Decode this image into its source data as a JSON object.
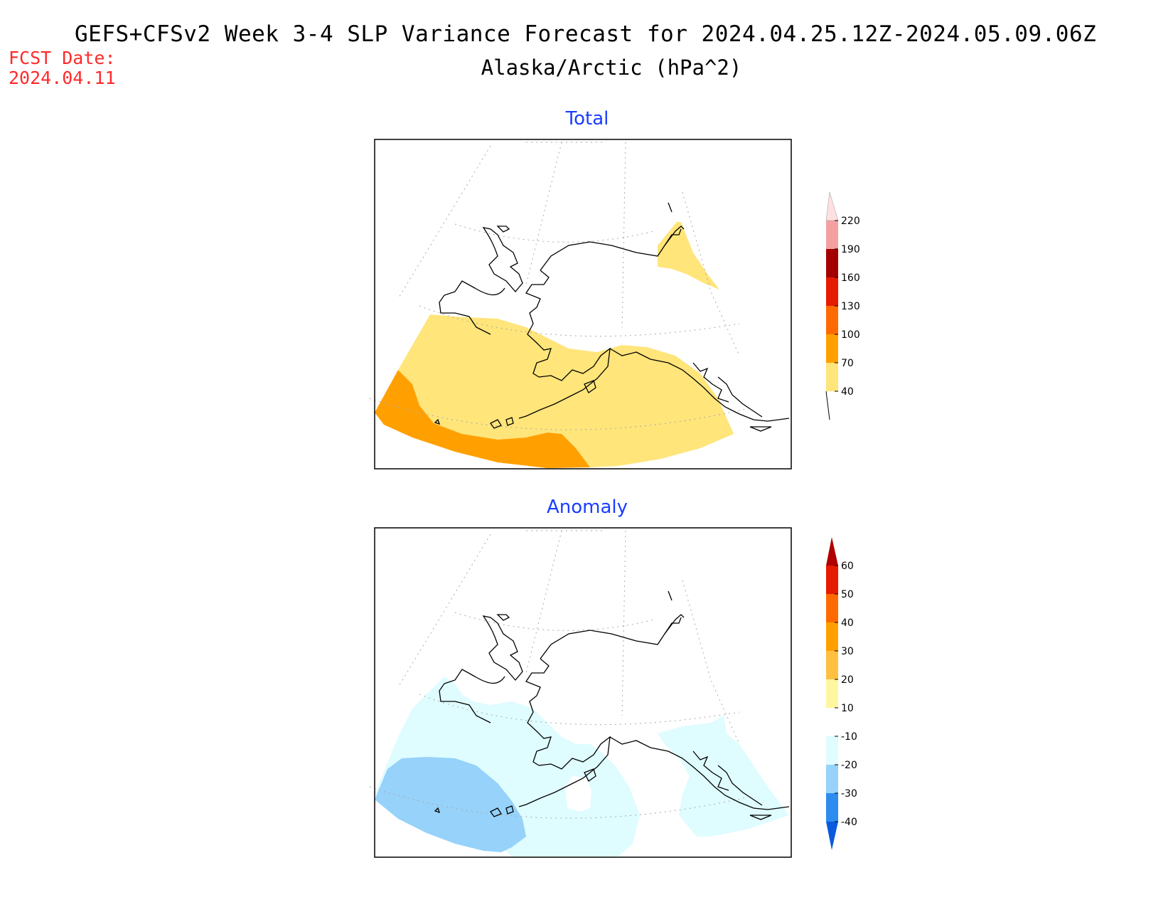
{
  "header": {
    "title": "GEFS+CFSv2 Week 3-4 SLP Variance Forecast for 2024.04.25.12Z-2024.05.09.06Z",
    "subtitle": "Alaska/Arctic (hPa^2)",
    "fcst_label": "FCST Date:",
    "fcst_date": "2024.04.11"
  },
  "panels": {
    "total": {
      "title": "Total",
      "colorbar": {
        "levels": [
          "40",
          "70",
          "100",
          "130",
          "160",
          "190",
          "220"
        ],
        "colors": [
          "#ffe57a",
          "#ffa000",
          "#ff6a00",
          "#e61a00",
          "#a50000",
          "#f4a0a0",
          "#ffe0e0"
        ]
      }
    },
    "anomaly": {
      "title": "Anomaly",
      "colorbar": {
        "levels": [
          "60",
          "50",
          "40",
          "30",
          "20",
          "10",
          "-10",
          "-20",
          "-30",
          "-40"
        ],
        "colors": [
          "#b00000",
          "#e61a00",
          "#ff6a00",
          "#ffa000",
          "#ffc040",
          "#fff7a0",
          "#ffffff",
          "#dffcff",
          "#96d2fa",
          "#2c8cf0",
          "#0a5adc"
        ]
      }
    }
  },
  "colors": {
    "title_red": "#ff2a2a",
    "panel_title_blue": "#1a3dff"
  }
}
